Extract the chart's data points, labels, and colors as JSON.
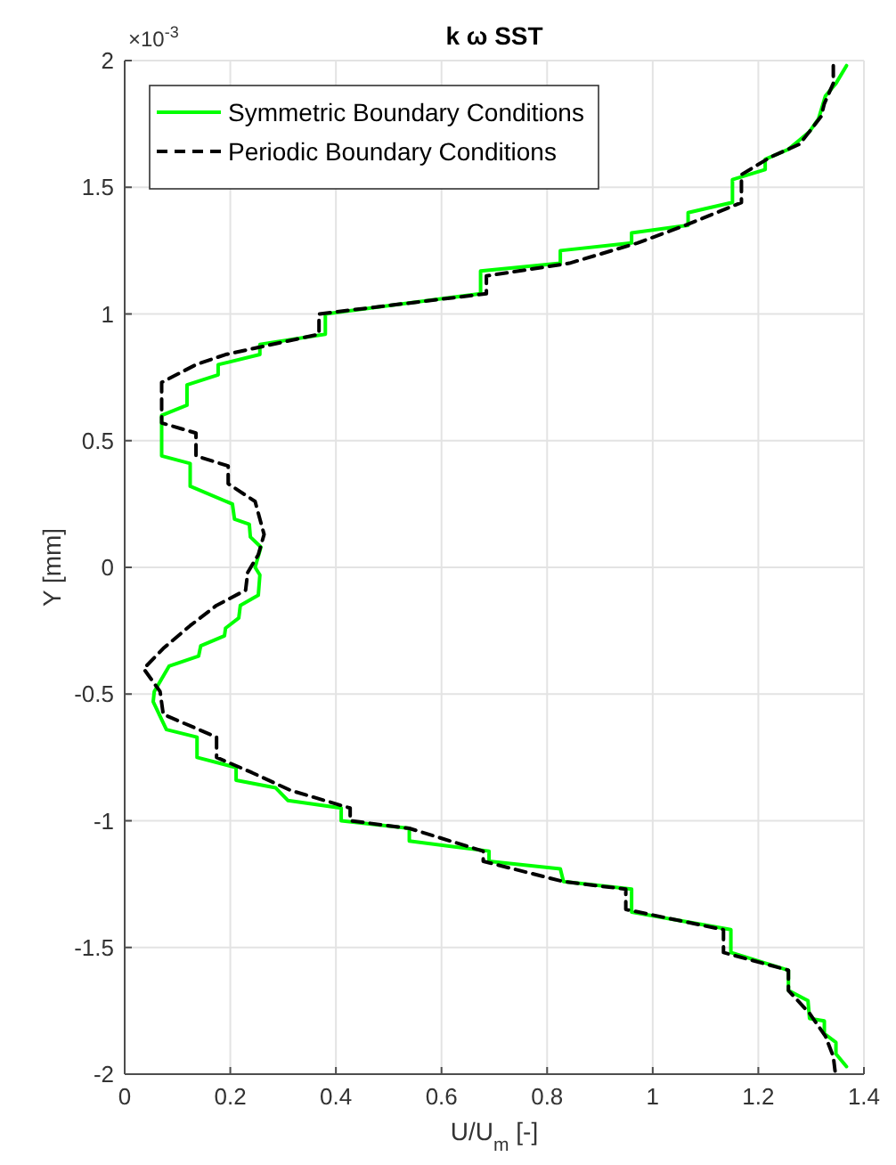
{
  "chart_data": {
    "type": "line",
    "title": "k ω SST",
    "xlabel": "U/U$_{m}$ [-]",
    "ylabel": "Y [mm]",
    "annotations": [
      "×10$^{-3}$"
    ],
    "xlim": [
      0,
      1.4
    ],
    "xticks": [
      0,
      0.2,
      0.4,
      0.6,
      0.8,
      1,
      1.2,
      1.4
    ],
    "ylim": [
      -2,
      2
    ],
    "yticks": [
      -2,
      -1.5,
      -1,
      -0.5,
      0,
      0.5,
      1,
      1.5,
      2
    ],
    "grid": true,
    "legend": "top left",
    "series": [
      {
        "name": "Symmetric Boundary Conditions",
        "color": "#00ff00",
        "line_style": "solid",
        "x": [
          1.367,
          1.347,
          1.327,
          1.314,
          1.297,
          1.28,
          1.257,
          1.213,
          1.213,
          1.151,
          1.151,
          1.067,
          1.067,
          0.96,
          0.96,
          0.825,
          0.825,
          0.674,
          0.674,
          0.38,
          0.38,
          0.256,
          0.256,
          0.177,
          0.177,
          0.118,
          0.118,
          0.07,
          0.07,
          0.124,
          0.124,
          0.204,
          0.208,
          0.236,
          0.238,
          0.258,
          0.247,
          0.256,
          0.253,
          0.219,
          0.216,
          0.191,
          0.189,
          0.144,
          0.14,
          0.084,
          0.056,
          0.054,
          0.079,
          0.137,
          0.137,
          0.211,
          0.211,
          0.286,
          0.309,
          0.41,
          0.41,
          0.539,
          0.539,
          0.69,
          0.69,
          0.825,
          0.831,
          0.96,
          0.96,
          1.148,
          1.148,
          1.257,
          1.257,
          1.294,
          1.297,
          1.325,
          1.325,
          1.347,
          1.347,
          1.367
        ],
        "values": [
          1.98,
          1.91,
          1.86,
          1.77,
          1.72,
          1.69,
          1.65,
          1.61,
          1.57,
          1.53,
          1.44,
          1.4,
          1.35,
          1.32,
          1.28,
          1.25,
          1.2,
          1.17,
          1.08,
          1,
          0.92,
          0.88,
          0.84,
          0.8,
          0.76,
          0.72,
          0.64,
          0.6,
          0.44,
          0.41,
          0.32,
          0.25,
          0.19,
          0.17,
          0.12,
          0.08,
          0,
          -0.03,
          -0.11,
          -0.15,
          -0.2,
          -0.24,
          -0.27,
          -0.31,
          -0.35,
          -0.39,
          -0.49,
          -0.53,
          -0.64,
          -0.67,
          -0.75,
          -0.79,
          -0.84,
          -0.87,
          -0.92,
          -0.95,
          -1,
          -1.03,
          -1.08,
          -1.12,
          -1.16,
          -1.19,
          -1.24,
          -1.27,
          -1.36,
          -1.43,
          -1.52,
          -1.59,
          -1.67,
          -1.71,
          -1.78,
          -1.79,
          -1.84,
          -1.875,
          -1.92,
          -1.97
        ]
      },
      {
        "name": "Periodic Boundary Conditions",
        "color": "#000000",
        "line_style": "dashed",
        "x": [
          1.342,
          1.342,
          1.325,
          1.319,
          1.297,
          1.278,
          1.224,
          1.168,
          1.168,
          1.062,
          0.971,
          0.842,
          0.685,
          0.685,
          0.368,
          0.368,
          0.191,
          0.135,
          0.07,
          0.07,
          0.07,
          0.135,
          0.135,
          0.196,
          0.196,
          0.247,
          0.264,
          0.253,
          0.233,
          0.229,
          0.174,
          0.124,
          0.073,
          0.036,
          0.067,
          0.073,
          0.174,
          0.174,
          0.241,
          0.314,
          0.427,
          0.427,
          0.539,
          0.679,
          0.679,
          0.831,
          0.949,
          0.949,
          1.134,
          1.134,
          1.257,
          1.257,
          1.297,
          1.327,
          1.342,
          1.346
        ],
        "values": [
          1.98,
          1.91,
          1.83,
          1.78,
          1.72,
          1.67,
          1.62,
          1.55,
          1.44,
          1.35,
          1.28,
          1.2,
          1.15,
          1.08,
          1,
          0.92,
          0.84,
          0.8,
          0.73,
          0.62,
          0.57,
          0.53,
          0.44,
          0.4,
          0.33,
          0.26,
          0.13,
          0.05,
          -0.02,
          -0.09,
          -0.15,
          -0.23,
          -0.32,
          -0.4,
          -0.49,
          -0.58,
          -0.67,
          -0.75,
          -0.81,
          -0.88,
          -0.95,
          -1,
          -1.03,
          -1.12,
          -1.16,
          -1.24,
          -1.27,
          -1.35,
          -1.43,
          -1.52,
          -1.59,
          -1.67,
          -1.76,
          -1.85,
          -1.93,
          -2
        ]
      }
    ]
  }
}
